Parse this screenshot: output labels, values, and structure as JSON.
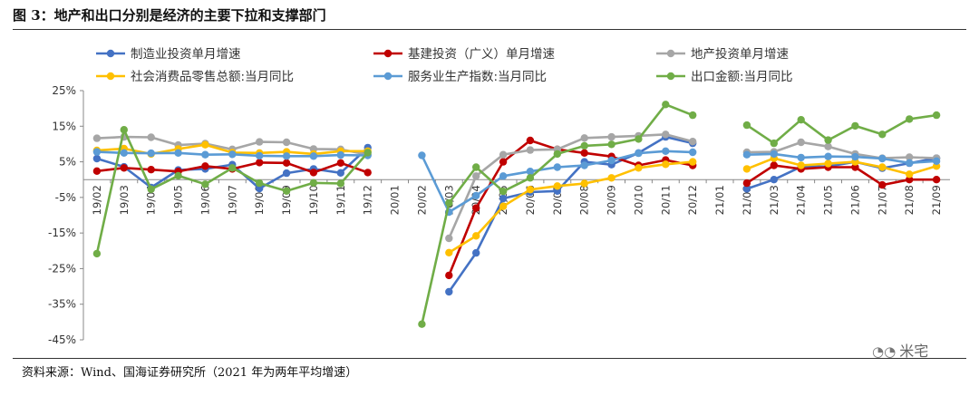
{
  "figure": {
    "title": "图 3：地产和出口分别是经济的主要下拉和支撑部门",
    "source": "资料来源：Wind、国海证券研究所（2021 年为两年平均增速）",
    "watermark": "米宅"
  },
  "chart_data": {
    "type": "line",
    "title": "",
    "xlabel": "",
    "ylabel": "",
    "ylim": [
      -45,
      25
    ],
    "yticks": [
      -45,
      -35,
      -25,
      -15,
      -5,
      5,
      15,
      25
    ],
    "ytick_labels": [
      "-45%",
      "-35%",
      "-25%",
      "-15%",
      "-5%",
      "5%",
      "15%",
      "25%"
    ],
    "grid": false,
    "legend_position": "top",
    "x": [
      "19/02",
      "19/03",
      "19/04",
      "19/05",
      "19/06",
      "19/07",
      "19/08",
      "19/09",
      "19/10",
      "19/11",
      "19/12",
      "20/01",
      "20/02",
      "20/03",
      "20/04",
      "20/05",
      "20/06",
      "20/07",
      "20/08",
      "20/09",
      "20/10",
      "20/11",
      "20/12",
      "21/01",
      "21/02",
      "21/03",
      "21/04",
      "21/05",
      "21/06",
      "21/07",
      "21/08",
      "21/09"
    ],
    "series": [
      {
        "name": "制造业投资单月增速",
        "color": "#4472C4",
        "values": [
          5.9,
          3.6,
          -2.2,
          2.7,
          3.0,
          4.2,
          -2.5,
          1.8,
          3.0,
          1.9,
          9.0,
          null,
          null,
          -31.5,
          -20.6,
          -5.3,
          -3.5,
          -3.2,
          5.0,
          4.2,
          7.5,
          12.0,
          10.2,
          null,
          -2.6,
          0.0,
          3.6,
          3.7,
          5.0,
          3.2,
          4.6,
          6.0
        ]
      },
      {
        "name": "基建投资（广义）单月增速",
        "color": "#C00000",
        "values": [
          2.4,
          3.3,
          2.8,
          2.3,
          3.8,
          3.0,
          4.8,
          4.7,
          2.0,
          4.7,
          2.0,
          null,
          null,
          -26.9,
          -8.0,
          5.0,
          11.0,
          8.5,
          7.5,
          6.5,
          4.0,
          5.5,
          4.0,
          null,
          -1.0,
          4.0,
          3.0,
          3.5,
          3.5,
          -1.5,
          0.0,
          0.0
        ]
      },
      {
        "name": "地产投资单月增速",
        "color": "#A6A6A6",
        "values": [
          11.6,
          12.0,
          11.9,
          9.7,
          10.1,
          8.5,
          10.6,
          10.5,
          8.6,
          8.5,
          7.0,
          null,
          null,
          -16.5,
          1.0,
          7.0,
          8.3,
          8.5,
          11.7,
          12.0,
          12.3,
          12.7,
          10.7,
          null,
          7.7,
          7.8,
          10.5,
          9.3,
          7.2,
          6.0,
          6.3,
          6.0
        ]
      },
      {
        "name": "社会消费品零售总额:当月同比",
        "color": "#FFC000",
        "values": [
          8.2,
          8.7,
          7.2,
          8.6,
          9.8,
          7.6,
          7.5,
          7.8,
          7.2,
          8.0,
          8.0,
          null,
          null,
          -20.5,
          -15.8,
          -7.5,
          -2.8,
          -1.8,
          -1.1,
          0.5,
          3.3,
          4.3,
          5.0,
          null,
          3.0,
          6.0,
          4.0,
          4.5,
          5.0,
          3.5,
          1.5,
          3.8
        ]
      },
      {
        "name": "服务业生产指数:当月同比",
        "color": "#5B9BD5",
        "values": [
          7.8,
          7.5,
          7.4,
          7.5,
          7.0,
          7.1,
          6.7,
          6.6,
          6.6,
          6.9,
          6.8,
          null,
          6.8,
          -9.1,
          -4.5,
          1.0,
          2.3,
          3.5,
          4.0,
          5.4,
          7.4,
          8.0,
          7.7,
          null,
          7.0,
          7.2,
          6.2,
          6.5,
          6.4,
          5.9,
          4.7,
          5.2
        ]
      },
      {
        "name": "出口金额:当月同比",
        "color": "#70AD47",
        "values": [
          -20.8,
          14.0,
          -2.7,
          1.1,
          -1.3,
          3.3,
          -1.0,
          -3.2,
          -0.9,
          -1.1,
          7.6,
          null,
          -40.6,
          -6.6,
          3.5,
          -3.3,
          0.5,
          7.2,
          9.5,
          9.9,
          11.4,
          21.1,
          18.1,
          null,
          15.3,
          10.2,
          16.8,
          11.1,
          15.1,
          12.7,
          17.0,
          18.1
        ]
      }
    ]
  }
}
